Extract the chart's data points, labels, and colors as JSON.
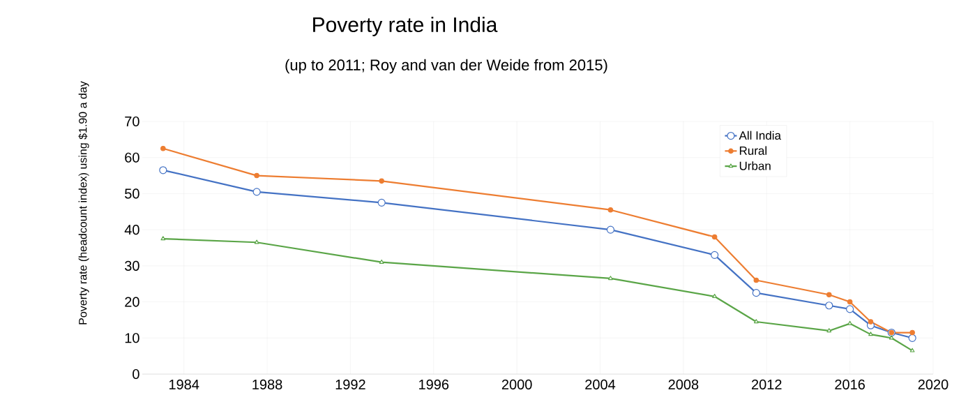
{
  "chart_data": {
    "type": "line",
    "title": "Poverty rate in India",
    "subtitle": "(up to 2011; Roy and van der Weide from 2015)",
    "ylabel": "Poverty rate (headcount index) using $1.90 a day",
    "x": [
      1983,
      1987.5,
      1993.5,
      2004.5,
      2009.5,
      2011.5,
      2015,
      2016,
      2017,
      2018,
      2019
    ],
    "series": [
      {
        "name": "All India",
        "color": "#4472c4",
        "marker": "circle",
        "values": [
          56.5,
          50.5,
          47.5,
          40,
          33,
          22.5,
          19,
          18,
          13.5,
          11.5,
          10
        ]
      },
      {
        "name": "Rural",
        "color": "#ed7d31",
        "marker": "circle",
        "values": [
          62.5,
          55,
          53.5,
          45.5,
          38,
          26,
          22,
          20,
          14.5,
          11.5,
          11.5
        ]
      },
      {
        "name": "Urban",
        "color": "#5aa547",
        "marker": "triangle",
        "values": [
          37.5,
          36.5,
          31,
          26.5,
          21.5,
          14.5,
          12,
          14,
          11,
          10,
          6.5
        ]
      }
    ],
    "xlim": [
      1982,
      2020
    ],
    "xticks": [
      1984,
      1988,
      1992,
      1996,
      2000,
      2004,
      2008,
      2012,
      2016,
      2020
    ],
    "ylim": [
      0,
      70
    ],
    "yticks": [
      0,
      10,
      20,
      30,
      40,
      50,
      60,
      70
    ],
    "grid": true,
    "legend": "top right",
    "line_style": "solid"
  }
}
